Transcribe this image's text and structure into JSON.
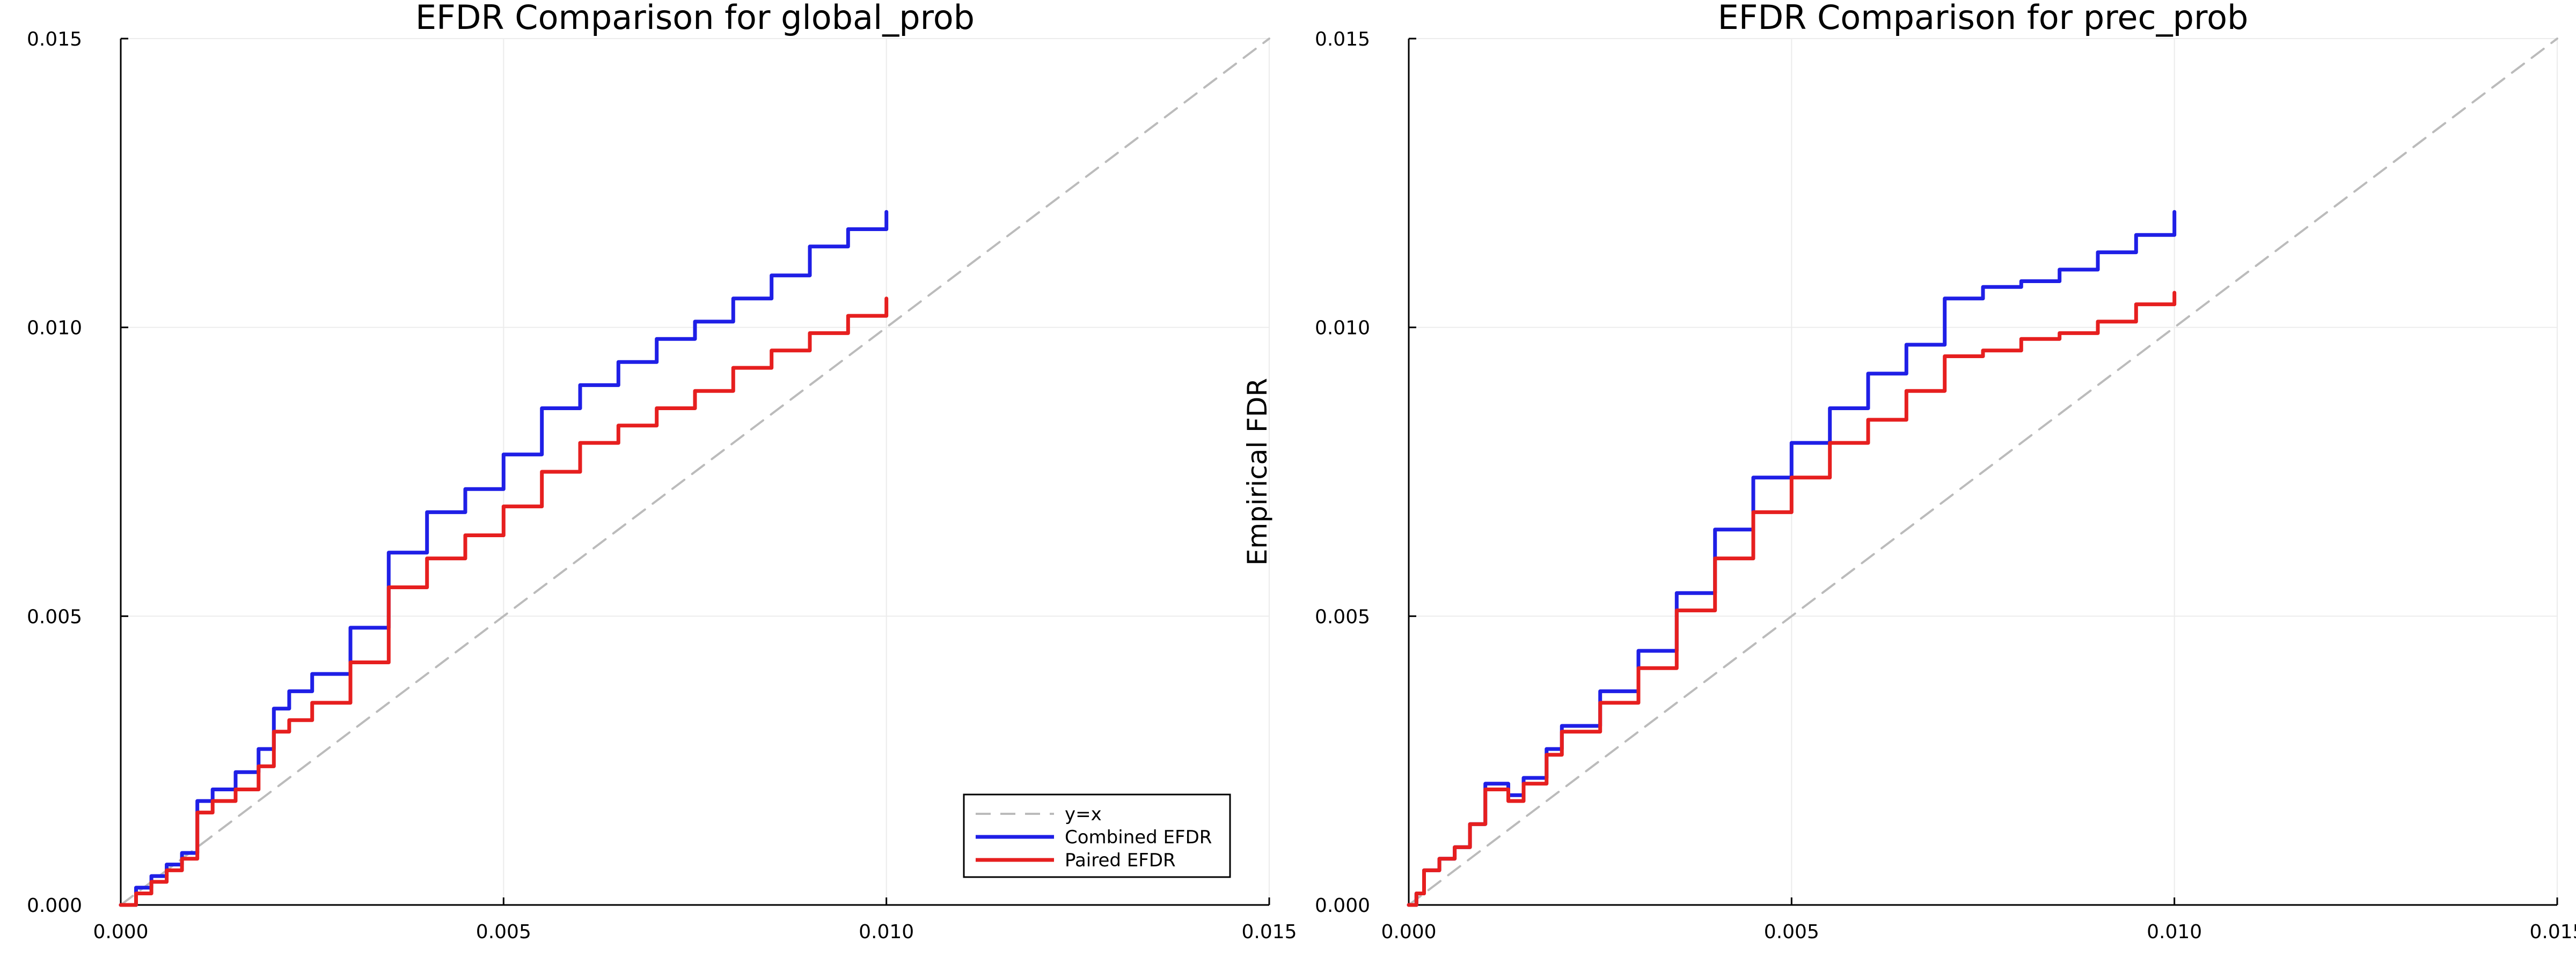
{
  "chart_data": [
    {
      "type": "line",
      "title": "EFDR Comparison for global_prob",
      "xlabel": "",
      "ylabel": "",
      "xlim": [
        0,
        0.015
      ],
      "ylim": [
        0,
        0.015
      ],
      "xticks": [
        "0.000",
        "0.005",
        "0.010",
        "0.015"
      ],
      "yticks": [
        "0.000",
        "0.005",
        "0.010",
        "0.015"
      ],
      "grid": true,
      "legend": "bottom-right",
      "series": [
        {
          "name": "y=x",
          "color": "#bbbbbb",
          "dash": true,
          "x": [
            0,
            0.015
          ],
          "y": [
            0,
            0.015
          ]
        },
        {
          "name": "Combined EFDR",
          "color": "#1f1fe6",
          "dash": false,
          "x": [
            0,
            0.0002,
            0.0004,
            0.0006,
            0.0008,
            0.001,
            0.0012,
            0.0015,
            0.0018,
            0.002,
            0.0022,
            0.0025,
            0.003,
            0.0035,
            0.004,
            0.0045,
            0.005,
            0.0055,
            0.006,
            0.0065,
            0.007,
            0.0075,
            0.008,
            0.0085,
            0.009,
            0.0095,
            0.01
          ],
          "y": [
            0,
            0.0003,
            0.0005,
            0.0007,
            0.0009,
            0.0018,
            0.002,
            0.0023,
            0.0027,
            0.0034,
            0.0037,
            0.004,
            0.0048,
            0.0061,
            0.0068,
            0.0072,
            0.0078,
            0.0086,
            0.009,
            0.0094,
            0.0098,
            0.0101,
            0.0105,
            0.0109,
            0.0114,
            0.0117,
            0.012
          ]
        },
        {
          "name": "Paired EFDR",
          "color": "#e61f1f",
          "dash": false,
          "x": [
            0,
            0.0002,
            0.0004,
            0.0006,
            0.0008,
            0.001,
            0.0012,
            0.0015,
            0.0018,
            0.002,
            0.0022,
            0.0025,
            0.003,
            0.0035,
            0.004,
            0.0045,
            0.005,
            0.0055,
            0.006,
            0.0065,
            0.007,
            0.0075,
            0.008,
            0.0085,
            0.009,
            0.0095,
            0.01
          ],
          "y": [
            0,
            0.0002,
            0.0004,
            0.0006,
            0.0008,
            0.0016,
            0.0018,
            0.002,
            0.0024,
            0.003,
            0.0032,
            0.0035,
            0.0042,
            0.0055,
            0.006,
            0.0064,
            0.0069,
            0.0075,
            0.008,
            0.0083,
            0.0086,
            0.0089,
            0.0093,
            0.0096,
            0.0099,
            0.0102,
            0.0105
          ]
        }
      ]
    },
    {
      "type": "line",
      "title": "EFDR Comparison for prec_prob",
      "xlabel": "",
      "ylabel": "Empirical FDR",
      "xlim": [
        0,
        0.015
      ],
      "ylim": [
        0,
        0.015
      ],
      "xticks": [
        "0.000",
        "0.005",
        "0.010",
        "0.015"
      ],
      "yticks": [
        "0.000",
        "0.005",
        "0.010",
        "0.015"
      ],
      "grid": true,
      "legend": "none",
      "series": [
        {
          "name": "y=x",
          "color": "#bbbbbb",
          "dash": true,
          "x": [
            0,
            0.015
          ],
          "y": [
            0,
            0.015
          ]
        },
        {
          "name": "Combined EFDR",
          "color": "#1f1fe6",
          "dash": false,
          "x": [
            0,
            0.0001,
            0.0002,
            0.0004,
            0.0006,
            0.0008,
            0.001,
            0.0012,
            0.0013,
            0.0015,
            0.0018,
            0.002,
            0.0025,
            0.003,
            0.0035,
            0.004,
            0.0045,
            0.005,
            0.0055,
            0.006,
            0.0065,
            0.007,
            0.0075,
            0.008,
            0.0085,
            0.009,
            0.0095,
            0.01
          ],
          "y": [
            0,
            0.0002,
            0.0006,
            0.0008,
            0.001,
            0.0014,
            0.0021,
            0.0021,
            0.0019,
            0.0022,
            0.0027,
            0.0031,
            0.0037,
            0.0044,
            0.0054,
            0.0065,
            0.0074,
            0.008,
            0.0086,
            0.0092,
            0.0097,
            0.0105,
            0.0107,
            0.0108,
            0.011,
            0.0113,
            0.0116,
            0.012
          ]
        },
        {
          "name": "Paired EFDR",
          "color": "#e61f1f",
          "dash": false,
          "x": [
            0,
            0.0001,
            0.0002,
            0.0004,
            0.0006,
            0.0008,
            0.001,
            0.0012,
            0.0013,
            0.0015,
            0.0018,
            0.002,
            0.0025,
            0.003,
            0.0035,
            0.004,
            0.0045,
            0.005,
            0.0055,
            0.006,
            0.0065,
            0.007,
            0.0075,
            0.008,
            0.0085,
            0.009,
            0.0095,
            0.01
          ],
          "y": [
            0,
            0.0002,
            0.0006,
            0.0008,
            0.001,
            0.0014,
            0.002,
            0.002,
            0.0018,
            0.0021,
            0.0026,
            0.003,
            0.0035,
            0.0041,
            0.0051,
            0.006,
            0.0068,
            0.0074,
            0.008,
            0.0084,
            0.0089,
            0.0095,
            0.0096,
            0.0098,
            0.0099,
            0.0101,
            0.0104,
            0.0106
          ]
        }
      ]
    }
  ]
}
